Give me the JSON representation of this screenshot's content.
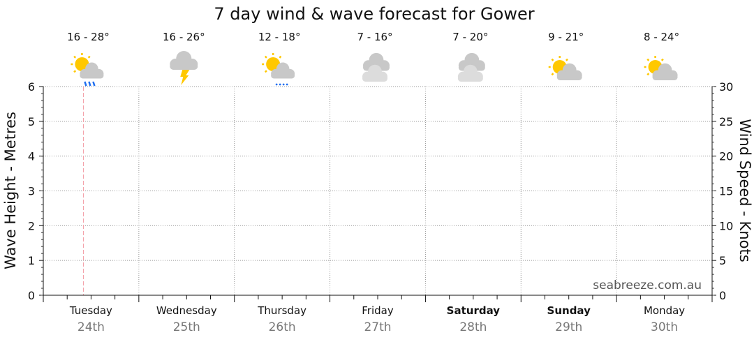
{
  "chart_data": {
    "type": "line",
    "title": "7 day wind & wave forecast for Gower",
    "ylabel_left": "Wave Height - Metres",
    "ylabel_right": "Wind Speed - Knots",
    "ylim_left": [
      0,
      6
    ],
    "ylim_right": [
      0,
      30
    ],
    "yticks_left": [
      "0",
      "1",
      "2",
      "3",
      "4",
      "5",
      "6"
    ],
    "yticks_right": [
      "0",
      "5",
      "10",
      "15",
      "20",
      "25",
      "30"
    ],
    "grid": true,
    "now_fraction_of_days": 0.42,
    "days": [
      {
        "day": "Tuesday",
        "date": "24th",
        "temp": "16 - 28°",
        "icon": "sun-cloud-rain",
        "bold": false
      },
      {
        "day": "Wednesday",
        "date": "25th",
        "temp": "16 - 26°",
        "icon": "cloud-thunder",
        "bold": false
      },
      {
        "day": "Thursday",
        "date": "26th",
        "temp": "12 - 18°",
        "icon": "sun-cloud-drizzle",
        "bold": false
      },
      {
        "day": "Friday",
        "date": "27th",
        "temp": "7 - 16°",
        "icon": "cloudy",
        "bold": false
      },
      {
        "day": "Saturday",
        "date": "28th",
        "temp": "7 - 20°",
        "icon": "cloudy",
        "bold": true
      },
      {
        "day": "Sunday",
        "date": "29th",
        "temp": "9 - 21°",
        "icon": "partly-cloudy",
        "bold": true
      },
      {
        "day": "Monday",
        "date": "30th",
        "temp": "8 - 24°",
        "icon": "partly-cloudy",
        "bold": false
      }
    ],
    "series": []
  },
  "watermark": "seabreeze.com.au",
  "colors": {
    "sun": "#FFC800",
    "cloud": "#C8C8C8",
    "cloud_light": "#DCDCDC",
    "rain": "#1E6EF0",
    "bolt": "#FFC800",
    "now_line": "#F4A0A8"
  }
}
